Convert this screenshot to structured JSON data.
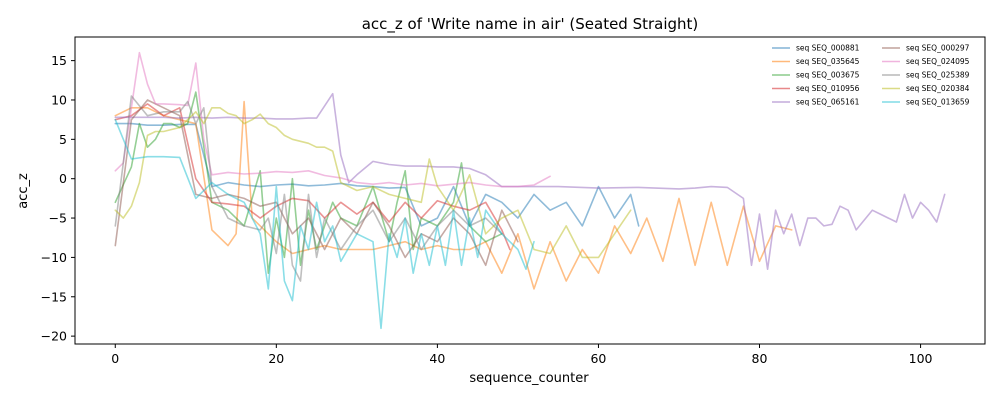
{
  "chart_data": {
    "type": "line",
    "title": "acc_z of 'Write name in air' (Seated Straight)",
    "xlabel": "sequence_counter",
    "ylabel": "acc_z",
    "xlim": [
      -5,
      108
    ],
    "ylim": [
      -21,
      18
    ],
    "xticks": [
      0,
      20,
      40,
      60,
      80,
      100
    ],
    "yticks": [
      -20,
      -15,
      -10,
      -5,
      0,
      5,
      10,
      15
    ],
    "grid": false,
    "legend_position": "top-right",
    "legend_columns": 2,
    "series": [
      {
        "name": "seq SEQ_000881",
        "color": "#1f77b4",
        "x": [
          0,
          2,
          4,
          6,
          8,
          10,
          12,
          14,
          16,
          18,
          20,
          22,
          24,
          26,
          28,
          30,
          32,
          34,
          36,
          38,
          40,
          42,
          44,
          46,
          48,
          50,
          52,
          54,
          56,
          58,
          60,
          62,
          64,
          65
        ],
        "y": [
          7,
          7,
          6.8,
          6.8,
          6.9,
          6.9,
          -1,
          -0.5,
          -0.8,
          -1,
          -0.8,
          -0.7,
          -0.9,
          -0.8,
          -0.6,
          -0.9,
          -1,
          -1.2,
          -1.1,
          -6,
          -5,
          -1,
          -6,
          -2,
          -3,
          -5,
          -2,
          -4,
          -3,
          -6,
          -1,
          -5,
          -2,
          -6
        ]
      },
      {
        "name": "seq SEQ_035645",
        "color": "#ff7f0e",
        "x": [
          0,
          2,
          4,
          6,
          8,
          10,
          12,
          14,
          15,
          16,
          17,
          18,
          20,
          22,
          24,
          26,
          28,
          30,
          32,
          34,
          36,
          38,
          40,
          42,
          44,
          46,
          48,
          50,
          52,
          54,
          56,
          58,
          60,
          62,
          64,
          66,
          68,
          70,
          72,
          74,
          76,
          78,
          80,
          82,
          84
        ],
        "y": [
          8,
          9,
          9,
          8,
          7.5,
          7,
          -6.5,
          -8.5,
          -7,
          9.8,
          -5,
          -6,
          -8,
          -9.5,
          -9,
          -8.5,
          -9,
          -9,
          -9,
          -8.5,
          -8,
          -9,
          -8.5,
          -9,
          -9,
          -8,
          -12,
          -7,
          -14,
          -8,
          -13,
          -9,
          -12,
          -6,
          -9.5,
          -5,
          -10.5,
          -2.5,
          -11,
          -3,
          -11,
          -3.5,
          -10.5,
          -6,
          -6.5
        ]
      },
      {
        "name": "seq SEQ_003675",
        "color": "#2ca02c",
        "x": [
          0,
          2,
          3,
          4,
          5,
          6,
          7,
          8,
          9,
          10,
          12,
          14,
          16,
          18,
          19,
          20,
          21,
          22,
          23,
          24,
          25,
          26,
          27,
          28,
          30,
          32,
          34,
          35,
          36,
          37,
          38,
          40,
          42,
          43,
          44,
          46,
          48
        ],
        "y": [
          -3,
          1.5,
          7,
          4,
          5,
          7,
          7,
          6.5,
          7,
          11,
          -3,
          -4,
          -6,
          1,
          -12,
          -5,
          -10,
          0,
          -11,
          -4,
          -9,
          -6,
          -3,
          -5,
          -6,
          -1,
          -8,
          -3,
          1,
          -9,
          -5,
          -6,
          -3,
          2,
          -6,
          -8,
          -7
        ]
      },
      {
        "name": "seq SEQ_010956",
        "color": "#d62728",
        "x": [
          0,
          2,
          4,
          6,
          8,
          10,
          12,
          14,
          16,
          18,
          20,
          22,
          24,
          26,
          28,
          30,
          32,
          34,
          36,
          38,
          40,
          42,
          44,
          46,
          48,
          49
        ],
        "y": [
          7.5,
          8,
          9.5,
          8,
          9,
          0,
          -3,
          -3.2,
          -3.5,
          -5,
          -3.5,
          -2.5,
          -2.8,
          -5,
          -3,
          -4.5,
          -3,
          -5.5,
          -3,
          -5,
          -2.8,
          -3.5,
          -4,
          -3,
          -6.5,
          -9
        ]
      },
      {
        "name": "seq SEQ_065161",
        "color": "#9467bd",
        "x": [
          0,
          2,
          4,
          6,
          8,
          10,
          12,
          14,
          16,
          18,
          20,
          22,
          24,
          25,
          27,
          28,
          29,
          30,
          32,
          34,
          36,
          38,
          40,
          42,
          44,
          46,
          48,
          50,
          55,
          60,
          65,
          70,
          72,
          74,
          76,
          78,
          79,
          80,
          81,
          82,
          83,
          84,
          85,
          86,
          87,
          88,
          89,
          90,
          91,
          92,
          94,
          95,
          96,
          97,
          98,
          99,
          100,
          101,
          102,
          103
        ],
        "y": [
          7.8,
          7.8,
          7.8,
          7.8,
          7.7,
          7.8,
          7.7,
          7.8,
          7.7,
          7.7,
          7.6,
          7.6,
          7.7,
          7.7,
          10.8,
          3,
          -0.5,
          0.5,
          2.2,
          1.8,
          1.6,
          1.6,
          1.5,
          1.5,
          1.3,
          0.5,
          -1,
          -1,
          -1,
          -1.2,
          -1.1,
          -1.3,
          -1.2,
          -1,
          -1.1,
          -2.5,
          -11,
          -4.5,
          -11.5,
          -4,
          -7,
          -4.5,
          -8.5,
          -5,
          -5,
          -6,
          -5.8,
          -3.5,
          -4,
          -6.5,
          -4,
          -4.5,
          -5,
          -5.5,
          -2,
          -5,
          -3,
          -4,
          -5.5,
          -2
        ]
      },
      {
        "name": "seq SEQ_000297",
        "color": "#8c564b",
        "x": [
          0,
          2,
          4,
          6,
          8,
          10,
          12,
          14,
          16,
          18,
          20,
          22,
          24,
          26,
          28,
          30,
          32,
          34,
          36,
          38,
          40,
          42,
          44,
          46,
          48,
          50
        ],
        "y": [
          -8.5,
          7.5,
          10,
          9,
          8,
          -2,
          -2.5,
          -2,
          -2.5,
          -3.5,
          -3,
          -7,
          -5,
          -9,
          -5,
          -7,
          -3,
          -6,
          -10,
          -7,
          -8,
          -5,
          -7,
          -11,
          -4,
          -8
        ]
      },
      {
        "name": "seq SEQ_024095",
        "color": "#e377c2",
        "x": [
          0,
          1,
          2,
          3,
          4,
          5,
          6,
          8,
          9,
          10,
          11,
          12,
          14,
          16,
          18,
          20,
          22,
          24,
          26,
          28,
          30,
          32,
          34,
          36,
          38,
          40,
          42,
          44,
          46,
          48,
          50,
          52,
          54
        ],
        "y": [
          1,
          2,
          9,
          16,
          12,
          9.5,
          9.5,
          9.4,
          9.3,
          14.7,
          5,
          0.5,
          0.8,
          0.6,
          0.7,
          0.9,
          0.8,
          1,
          0.4,
          0.1,
          -0.5,
          -0.7,
          -0.5,
          -0.8,
          -0.6,
          -0.9,
          -0.7,
          -0.5,
          -0.8,
          -1,
          -1,
          -0.8,
          0.3
        ]
      },
      {
        "name": "seq SEQ_025389",
        "color": "#7f7f7f",
        "x": [
          0,
          1,
          2,
          4,
          6,
          8,
          9,
          10,
          11,
          12,
          14,
          16,
          18,
          19,
          20,
          21,
          22,
          23,
          24,
          25,
          26,
          28,
          30,
          32,
          34,
          36,
          38,
          40,
          42,
          44,
          46,
          48
        ],
        "y": [
          -6,
          2,
          10.5,
          8,
          8.5,
          8.5,
          9.8,
          7,
          9,
          -1,
          -5,
          -6,
          -6.5,
          -5,
          -9.5,
          -2,
          -11,
          -13,
          -2,
          -10,
          -5,
          -9,
          -6,
          -4,
          -8,
          -5,
          -9,
          -6,
          -4,
          -6,
          -5,
          -7
        ]
      },
      {
        "name": "seq SEQ_020384",
        "color": "#bcbd22",
        "x": [
          0,
          1,
          2,
          3,
          4,
          5,
          6,
          8,
          10,
          11,
          12,
          13,
          14,
          15,
          16,
          17,
          18,
          19,
          20,
          21,
          22,
          24,
          25,
          26,
          27,
          28,
          30,
          32,
          34,
          36,
          38,
          39,
          40,
          42,
          44,
          46,
          48,
          50,
          52,
          54,
          56,
          58,
          60,
          62,
          64
        ],
        "y": [
          -4,
          -5,
          -3.5,
          -0.5,
          5.5,
          6,
          6,
          6.5,
          8.5,
          7,
          9,
          9,
          8.3,
          8,
          7,
          7.5,
          8.2,
          7,
          6.5,
          5.5,
          5,
          4.5,
          4,
          4,
          3.5,
          -0.5,
          -1.5,
          -1,
          -2,
          -2.5,
          -3,
          2.5,
          -1,
          -4,
          0.5,
          -7,
          -5,
          -4,
          -9,
          -9.5,
          -6,
          -10,
          -10,
          -7,
          -4
        ]
      },
      {
        "name": "seq SEQ_013659",
        "color": "#17becf",
        "x": [
          0,
          2,
          4,
          6,
          8,
          10,
          12,
          14,
          16,
          18,
          19,
          20,
          21,
          22,
          23,
          24,
          25,
          26,
          27,
          28,
          30,
          32,
          33,
          34,
          35,
          36,
          37,
          38,
          39,
          40,
          41,
          42,
          43,
          44,
          45,
          46,
          48,
          50,
          51,
          52
        ],
        "y": [
          7.5,
          2.5,
          2.8,
          2.8,
          2.7,
          -2.5,
          -0.5,
          -2,
          -3,
          -7,
          -14,
          -1,
          -13,
          -15.5,
          -6,
          -9,
          -3,
          -8,
          -6,
          -10.5,
          -7,
          -8,
          -19,
          -7,
          -10,
          -5,
          -12,
          -7,
          -11,
          -6,
          -11,
          -4,
          -11,
          -5,
          -10,
          -4,
          -7,
          -9,
          -11.5,
          -8
        ]
      }
    ]
  }
}
